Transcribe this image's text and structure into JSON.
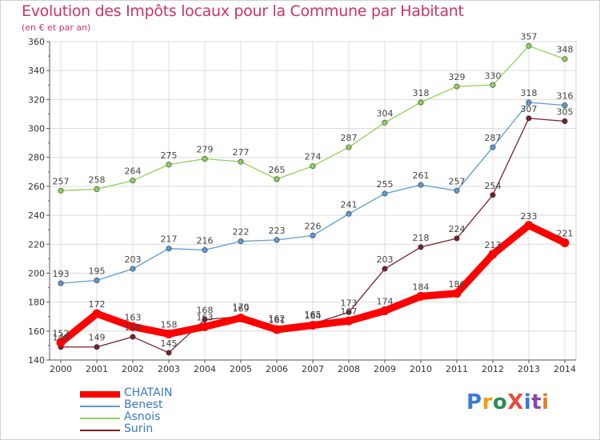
{
  "chart_data": {
    "type": "line",
    "title": "Evolution des Impôts locaux pour la Commune par Habitant",
    "subtitle": "(en € et par an)",
    "categories": [
      "2000",
      "2001",
      "2002",
      "2003",
      "2004",
      "2005",
      "2006",
      "2007",
      "2008",
      "2009",
      "2010",
      "2011",
      "2012",
      "2013",
      "2014"
    ],
    "ylim": [
      140,
      360
    ],
    "yticks": [
      140,
      160,
      180,
      200,
      220,
      240,
      260,
      280,
      300,
      320,
      340,
      360
    ],
    "grid": true,
    "legend_position": "bottom-left",
    "series": [
      {
        "name": "CHATAIN",
        "color": "#ff0000",
        "values": [
          152,
          172,
          163,
          158,
          163,
          169,
          161,
          164,
          167,
          174,
          184,
          186,
          213,
          233,
          221
        ]
      },
      {
        "name": "Benest",
        "color": "#5a9bd5",
        "values": [
          193,
          195,
          203,
          217,
          216,
          222,
          223,
          226,
          241,
          255,
          261,
          257,
          287,
          318,
          316
        ]
      },
      {
        "name": "Asnois",
        "color": "#8fd05a",
        "values": [
          257,
          258,
          264,
          275,
          279,
          277,
          265,
          274,
          287,
          304,
          318,
          329,
          330,
          357,
          348
        ]
      },
      {
        "name": "Surin",
        "color": "#7a1f2a",
        "values": [
          149,
          149,
          156,
          145,
          168,
          170,
          162,
          165,
          173,
          203,
          218,
          224,
          254,
          307,
          305
        ]
      }
    ]
  },
  "brand": {
    "text": "ProXiti",
    "colors": [
      "#3a7bd5",
      "#f39c12",
      "#2e8b57",
      "#e74c3c",
      "#3a7bd5",
      "#8e44ad",
      "#e67e22"
    ]
  }
}
